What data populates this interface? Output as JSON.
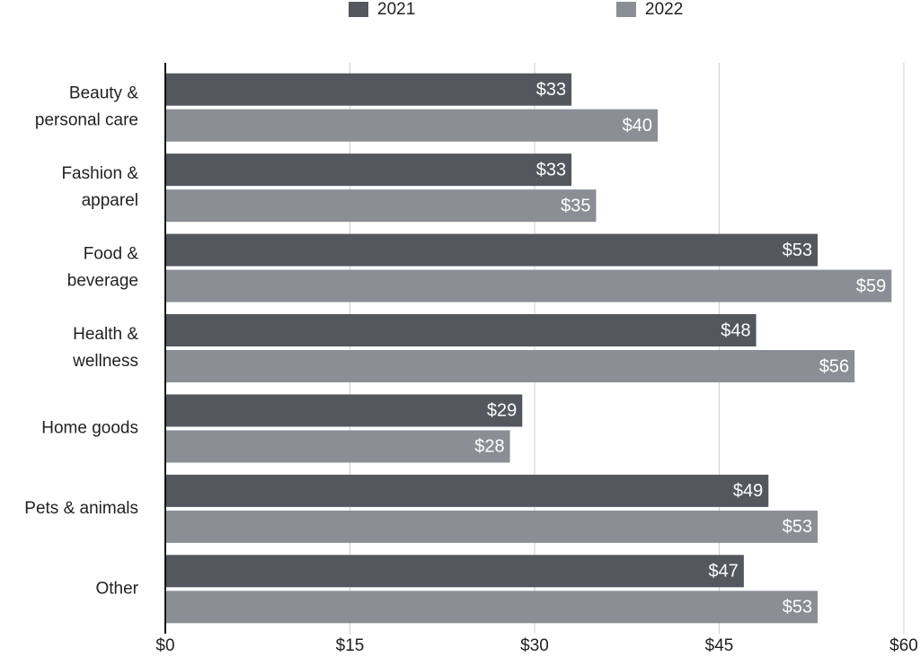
{
  "chart_data": {
    "type": "hbar",
    "categories": [
      "Beauty &\npersonal care",
      "Fashion &\napparel",
      "Food &\nbeverage",
      "Health &\nwellness",
      "Home goods",
      "Pets & animals",
      "Other"
    ],
    "series": [
      {
        "name": "2021",
        "color": "#54575e",
        "values": [
          33,
          33,
          53,
          48,
          29,
          49,
          47
        ],
        "value_labels": [
          "$33",
          "$33",
          "$53",
          "$48",
          "$29",
          "$49",
          "$47"
        ]
      },
      {
        "name": "2022",
        "color": "#8b8e95",
        "values": [
          40,
          35,
          59,
          56,
          28,
          53,
          53
        ],
        "value_labels": [
          "$40",
          "$35",
          "$59",
          "$56",
          "$28",
          "$53",
          "$53"
        ]
      }
    ],
    "xlim": [
      0,
      60
    ],
    "xticks": [
      {
        "value": 0,
        "label": "$0"
      },
      {
        "value": 15,
        "label": "$15"
      },
      {
        "value": 30,
        "label": "$30"
      },
      {
        "value": 45,
        "label": "$45"
      },
      {
        "value": 60,
        "label": "$60"
      }
    ],
    "grid": true,
    "legend": "top"
  }
}
